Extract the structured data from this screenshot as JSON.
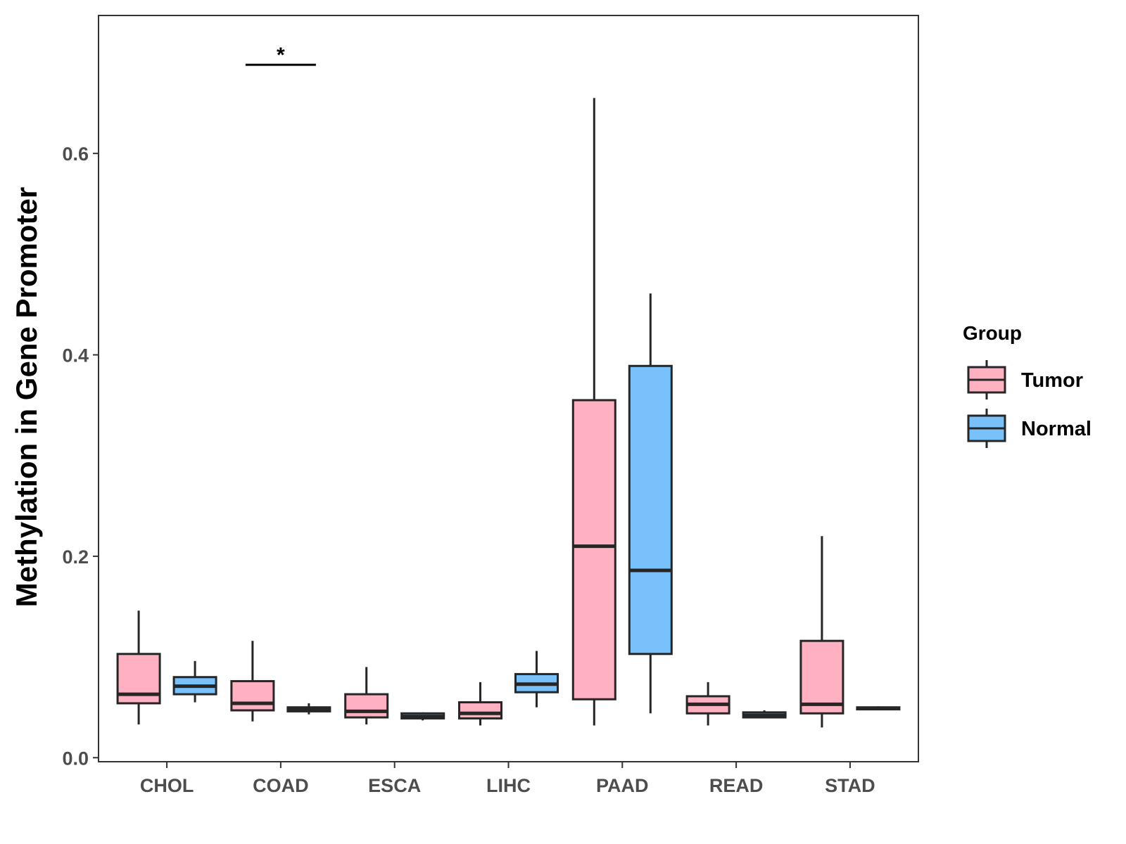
{
  "chart_data": {
    "type": "boxplot",
    "title": "",
    "xlabel": "",
    "ylabel": "Methylation in Gene Promoter",
    "ylim": [
      -0.004,
      0.737
    ],
    "yticks": [
      0.0,
      0.2,
      0.4,
      0.6
    ],
    "ytick_labels": [
      "0.0",
      "0.2",
      "0.4",
      "0.6"
    ],
    "categories": [
      "CHOL",
      "COAD",
      "ESCA",
      "LIHC",
      "PAAD",
      "READ",
      "STAD"
    ],
    "legend": {
      "title": "Group",
      "position": "right",
      "entries": [
        {
          "name": "Tumor",
          "color": "#FFB0C1"
        },
        {
          "name": "Normal",
          "color": "#78C1FA"
        }
      ]
    },
    "series": [
      {
        "name": "Tumor",
        "color": "#FFB0C1",
        "boxes": [
          {
            "category": "CHOL",
            "min": 0.033,
            "q1": 0.054,
            "median": 0.063,
            "q3": 0.103,
            "max": 0.146
          },
          {
            "category": "COAD",
            "min": 0.036,
            "q1": 0.047,
            "median": 0.054,
            "q3": 0.076,
            "max": 0.116
          },
          {
            "category": "ESCA",
            "min": 0.033,
            "q1": 0.04,
            "median": 0.046,
            "q3": 0.063,
            "max": 0.09
          },
          {
            "category": "LIHC",
            "min": 0.032,
            "q1": 0.039,
            "median": 0.044,
            "q3": 0.055,
            "max": 0.075
          },
          {
            "category": "PAAD",
            "min": 0.032,
            "q1": 0.058,
            "median": 0.21,
            "q3": 0.355,
            "max": 0.655
          },
          {
            "category": "READ",
            "min": 0.032,
            "q1": 0.044,
            "median": 0.053,
            "q3": 0.061,
            "max": 0.075
          },
          {
            "category": "STAD",
            "min": 0.03,
            "q1": 0.044,
            "median": 0.053,
            "q3": 0.116,
            "max": 0.22
          }
        ]
      },
      {
        "name": "Normal",
        "color": "#78C1FA",
        "boxes": [
          {
            "category": "CHOL",
            "min": 0.055,
            "q1": 0.063,
            "median": 0.071,
            "q3": 0.08,
            "max": 0.096
          },
          {
            "category": "COAD",
            "min": 0.043,
            "q1": 0.046,
            "median": 0.048,
            "q3": 0.05,
            "max": 0.054
          },
          {
            "category": "ESCA",
            "min": 0.037,
            "q1": 0.039,
            "median": 0.041,
            "q3": 0.044,
            "max": 0.045
          },
          {
            "category": "LIHC",
            "min": 0.05,
            "q1": 0.065,
            "median": 0.073,
            "q3": 0.083,
            "max": 0.106
          },
          {
            "category": "PAAD",
            "min": 0.044,
            "q1": 0.103,
            "median": 0.186,
            "q3": 0.389,
            "max": 0.461
          },
          {
            "category": "READ",
            "min": 0.039,
            "q1": 0.04,
            "median": 0.042,
            "q3": 0.045,
            "max": 0.047
          },
          {
            "category": "STAD",
            "min": 0.047,
            "q1": 0.048,
            "median": 0.049,
            "q3": 0.05,
            "max": 0.051
          }
        ]
      }
    ],
    "annotations": [
      {
        "category": "COAD",
        "label": "*",
        "y": 0.688
      }
    ]
  },
  "colors": {
    "tumor": "#FFB0C1",
    "normal": "#78C1FA",
    "outline": "#262626",
    "panel_border": "#333333"
  }
}
